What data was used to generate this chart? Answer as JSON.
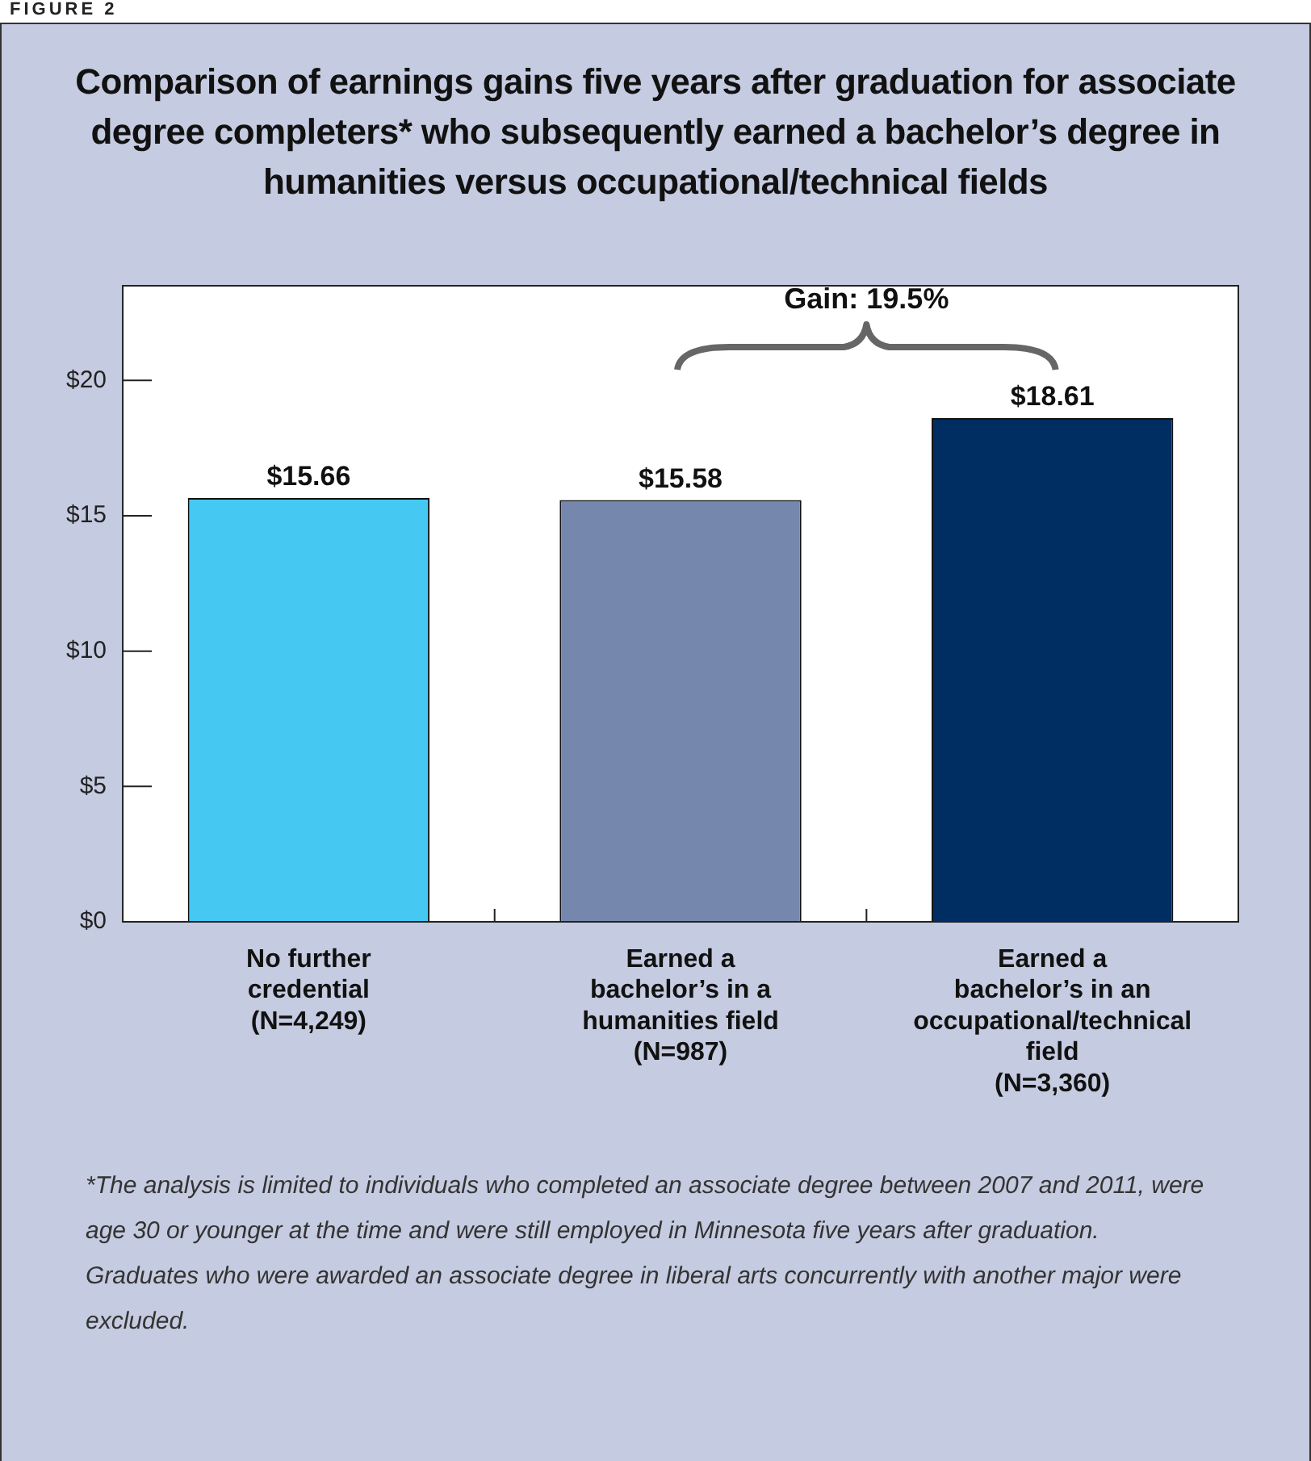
{
  "chart_data": {
    "type": "bar",
    "title": "Comparison of  earnings gains five years after graduation for associate degree completers* who subsequently earned a bachelor’s degree in humanities versus occupational/technical fields",
    "categories": [
      "No further credential (N=4,249)",
      "Earned a bachelor’s in a humanities field (N=987)",
      "Earned a bachelor’s in an occupational/technical field (N=3,360)"
    ],
    "values": [
      15.66,
      15.58,
      18.61
    ],
    "colors": [
      "#45c8f2",
      "#7587ad",
      "#002d62"
    ],
    "ylim": [
      0,
      23.5
    ],
    "yticks": [
      {
        "value": 0,
        "label": "$0"
      },
      {
        "value": 5,
        "label": "$5"
      },
      {
        "value": 10,
        "label": "$10"
      },
      {
        "value": 15,
        "label": "$15"
      },
      {
        "value": 20,
        "label": "$20"
      }
    ],
    "value_labels": [
      "$15.66",
      "$15.58",
      "$18.61"
    ],
    "grid": false,
    "legend": false,
    "annotations": [
      "FIGURE 2",
      "Gain: 19.5%",
      "*The analysis is limited to individuals who completed an associate degree between 2007 and 2011, were age 30  or younger at the time and were still employed in Minnesota five years after graduation. Graduates who were awarded an associate degree in liberal arts concurrently with another major were excluded."
    ]
  }
}
